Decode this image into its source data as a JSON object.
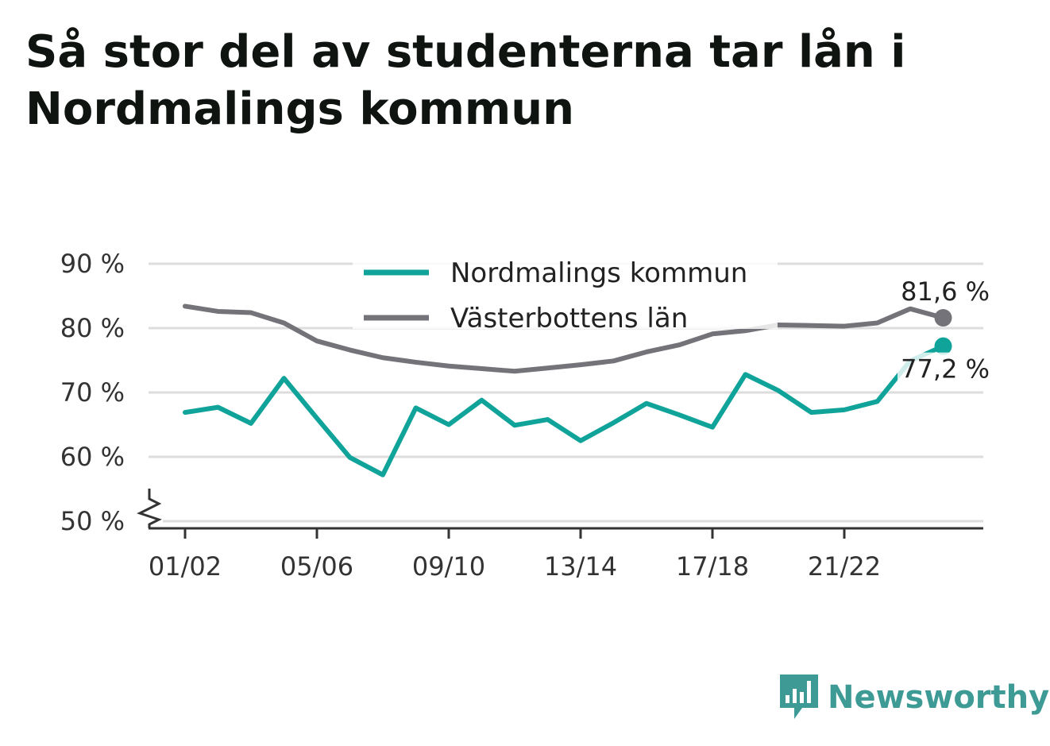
{
  "title": "Så stor del av studenterna tar lån i Nordmalings kommun",
  "brand": {
    "name": "Newsworthy",
    "icon": "bar-chart-logo-icon"
  },
  "colors": {
    "nordmaling": "#10a39a",
    "vasterbotten": "#747379",
    "grid": "#dddddd",
    "axis": "#333333"
  },
  "chart_data": {
    "type": "line",
    "title": "Så stor del av studenterna tar lån i Nordmalings kommun",
    "xlabel": "",
    "ylabel": "",
    "ylim": [
      50,
      90
    ],
    "y_ticks": [
      {
        "value": 50,
        "label": "50 %"
      },
      {
        "value": 60,
        "label": "60 %"
      },
      {
        "value": 70,
        "label": "70 %"
      },
      {
        "value": 80,
        "label": "80 %"
      },
      {
        "value": 90,
        "label": "90 %"
      }
    ],
    "y_axis_break": true,
    "x": [
      "01/02",
      "02/03",
      "03/04",
      "04/05",
      "05/06",
      "06/07",
      "07/08",
      "08/09",
      "09/10",
      "10/11",
      "11/12",
      "12/13",
      "13/14",
      "14/15",
      "15/16",
      "16/17",
      "17/18",
      "18/19",
      "19/20",
      "20/21",
      "21/22",
      "22/23",
      "23/24",
      "24/25"
    ],
    "x_tick_labels": [
      "01/02",
      "05/06",
      "09/10",
      "13/14",
      "17/18",
      "21/22"
    ],
    "grid": true,
    "legend": "top-center",
    "series": [
      {
        "name": "Nordmalings kommun",
        "color": "#10a39a",
        "values": [
          66.9,
          67.7,
          65.2,
          72.2,
          66.0,
          59.9,
          57.2,
          67.6,
          65.0,
          68.8,
          64.9,
          65.8,
          62.5,
          65.3,
          68.3,
          66.5,
          64.6,
          72.8,
          70.3,
          66.9,
          67.3,
          68.6,
          74.9,
          77.2
        ],
        "end_label": "77,2 %"
      },
      {
        "name": "Västerbottens län",
        "color": "#747379",
        "values": [
          83.4,
          82.6,
          82.4,
          80.8,
          78.0,
          76.6,
          75.4,
          74.7,
          74.1,
          73.7,
          73.3,
          73.8,
          74.3,
          74.9,
          76.3,
          77.4,
          79.1,
          79.6,
          80.5,
          80.4,
          80.3,
          80.8,
          83.0,
          81.6
        ],
        "end_label": "81,6 %"
      }
    ]
  }
}
